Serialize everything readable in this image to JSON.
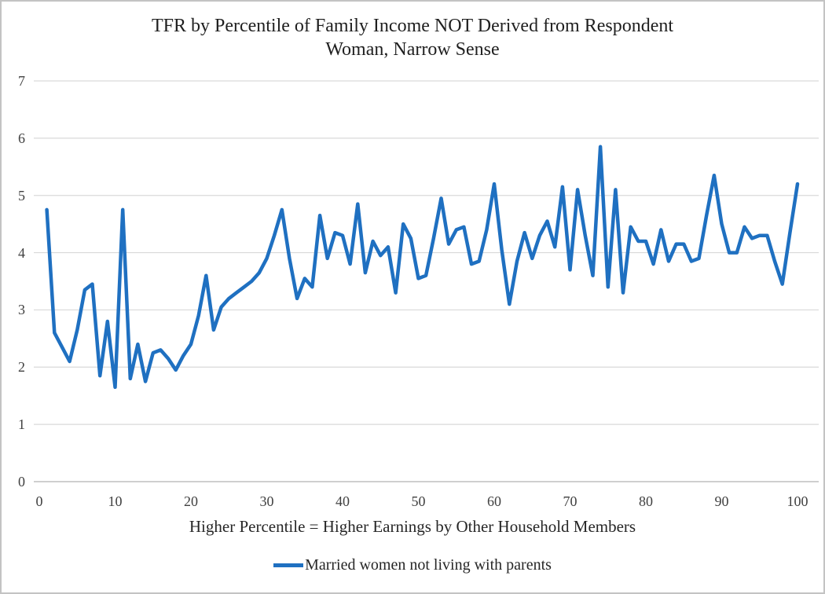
{
  "header": {
    "title_lines": [
      "TFR by Percentile of Family Income NOT Derived from Respondent",
      "Woman, Narrow Sense"
    ]
  },
  "colors": {
    "line": "#1f70c1",
    "gridline": "#d9d9d9",
    "axis_line": "#bfbfbf",
    "title_text": "#1f1f1f",
    "tick_text": "#404040"
  },
  "chart_data": {
    "type": "line",
    "title": "TFR by Percentile of Family Income NOT Derived from Respondent Woman, Narrow Sense",
    "xlabel": "Higher Percentile = Higher Earnings by Other Household Members",
    "ylabel": "",
    "xlim": [
      0,
      100
    ],
    "ylim": [
      0,
      7
    ],
    "x_ticks": [
      "0",
      "10",
      "20",
      "30",
      "40",
      "50",
      "60",
      "70",
      "80",
      "90",
      "100"
    ],
    "y_ticks": [
      "0",
      "1",
      "2",
      "3",
      "4",
      "5",
      "6",
      "7"
    ],
    "grid": "horizontal",
    "legend_position": "bottom",
    "x_description": "Percentile of family income not derived from respondent woman, values 1 through 100",
    "series": [
      {
        "name": "Married women not living with parents",
        "x_start": 1,
        "x_end": 100,
        "values": [
          4.75,
          2.6,
          2.35,
          2.1,
          2.65,
          3.35,
          3.45,
          1.85,
          2.8,
          1.65,
          4.75,
          1.8,
          2.4,
          1.75,
          2.25,
          2.3,
          2.15,
          1.95,
          2.2,
          2.4,
          2.9,
          3.6,
          2.65,
          3.05,
          3.2,
          3.3,
          3.4,
          3.5,
          3.65,
          3.9,
          4.3,
          4.75,
          3.9,
          3.2,
          3.55,
          3.4,
          4.65,
          3.9,
          4.35,
          4.3,
          3.8,
          4.85,
          3.65,
          4.2,
          3.95,
          4.1,
          3.3,
          4.5,
          4.25,
          3.55,
          3.6,
          4.25,
          4.95,
          4.15,
          4.4,
          4.45,
          3.8,
          3.85,
          4.4,
          5.2,
          4.05,
          3.1,
          3.85,
          4.35,
          3.9,
          4.3,
          4.55,
          4.1,
          5.15,
          3.7,
          5.1,
          4.3,
          3.6,
          5.85,
          3.4,
          5.1,
          3.3,
          4.45,
          4.2,
          4.2,
          3.8,
          4.4,
          3.85,
          4.15,
          4.15,
          3.85,
          3.9,
          4.65,
          5.35,
          4.5,
          4.0,
          4.0,
          4.45,
          4.25,
          4.3,
          4.3,
          3.85,
          3.45,
          4.35,
          5.2
        ]
      }
    ]
  }
}
